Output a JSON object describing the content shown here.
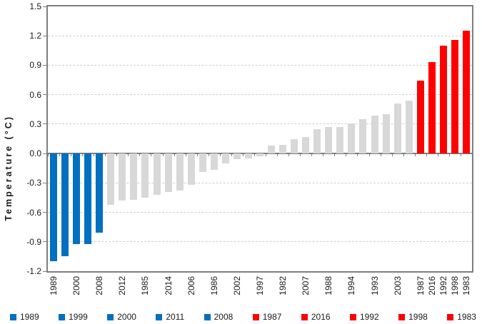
{
  "chart_data": {
    "type": "bar",
    "title": "",
    "xlabel": "",
    "ylabel": "Temperature (°C)",
    "ylim": [
      -1.2,
      1.5
    ],
    "grid": "horizontal-dashed",
    "legend_position": "bottom",
    "yticks": [
      {
        "value": 1.5,
        "label": "1.5"
      },
      {
        "value": 1.2,
        "label": "1.2"
      },
      {
        "value": 0.9,
        "label": "0.9"
      },
      {
        "value": 0.6,
        "label": "0.6"
      },
      {
        "value": 0.3,
        "label": "0.3"
      },
      {
        "value": 0.0,
        "label": "0.0"
      },
      {
        "value": -0.3,
        "label": "-0.3"
      },
      {
        "value": -0.6,
        "label": "-0.6"
      },
      {
        "value": -0.9,
        "label": "-0.9"
      },
      {
        "value": -1.2,
        "label": "-1.2"
      }
    ],
    "colors": {
      "blue": "#0070C0",
      "red": "#FF0000",
      "gray": "#D8D8D8"
    },
    "bars": [
      {
        "label": "1989",
        "value": -1.1,
        "group": "blue"
      },
      {
        "label": "",
        "value": -1.05,
        "group": "blue"
      },
      {
        "label": "2000",
        "value": -0.92,
        "group": "blue"
      },
      {
        "label": "",
        "value": -0.92,
        "group": "blue"
      },
      {
        "label": "2008",
        "value": -0.81,
        "group": "blue"
      },
      {
        "label": "",
        "value": -0.52,
        "group": "gray"
      },
      {
        "label": "2012",
        "value": -0.48,
        "group": "gray"
      },
      {
        "label": "",
        "value": -0.47,
        "group": "gray"
      },
      {
        "label": "1985",
        "value": -0.45,
        "group": "gray"
      },
      {
        "label": "",
        "value": -0.42,
        "group": "gray"
      },
      {
        "label": "2014",
        "value": -0.39,
        "group": "gray"
      },
      {
        "label": "",
        "value": -0.38,
        "group": "gray"
      },
      {
        "label": "2006",
        "value": -0.32,
        "group": "gray"
      },
      {
        "label": "",
        "value": -0.19,
        "group": "gray"
      },
      {
        "label": "1986",
        "value": -0.17,
        "group": "gray"
      },
      {
        "label": "",
        "value": -0.1,
        "group": "gray"
      },
      {
        "label": "2002",
        "value": -0.06,
        "group": "gray"
      },
      {
        "label": "",
        "value": -0.05,
        "group": "gray"
      },
      {
        "label": "1997",
        "value": -0.03,
        "group": "gray"
      },
      {
        "label": "",
        "value": 0.08,
        "group": "gray"
      },
      {
        "label": "1982",
        "value": 0.09,
        "group": "gray"
      },
      {
        "label": "",
        "value": 0.15,
        "group": "gray"
      },
      {
        "label": "2007",
        "value": 0.17,
        "group": "gray"
      },
      {
        "label": "",
        "value": 0.25,
        "group": "gray"
      },
      {
        "label": "1988",
        "value": 0.27,
        "group": "gray"
      },
      {
        "label": "",
        "value": 0.27,
        "group": "gray"
      },
      {
        "label": "1994",
        "value": 0.31,
        "group": "gray"
      },
      {
        "label": "",
        "value": 0.35,
        "group": "gray"
      },
      {
        "label": "1993",
        "value": 0.39,
        "group": "gray"
      },
      {
        "label": "",
        "value": 0.4,
        "group": "gray"
      },
      {
        "label": "2003",
        "value": 0.51,
        "group": "gray"
      },
      {
        "label": "",
        "value": 0.54,
        "group": "gray"
      },
      {
        "label": "1987",
        "value": 0.74,
        "group": "red"
      },
      {
        "label": "2016",
        "value": 0.93,
        "group": "red"
      },
      {
        "label": "1992",
        "value": 1.1,
        "group": "red"
      },
      {
        "label": "1998",
        "value": 1.16,
        "group": "red"
      },
      {
        "label": "1983",
        "value": 1.25,
        "group": "red"
      }
    ],
    "legend": [
      {
        "label": "1989",
        "group": "blue"
      },
      {
        "label": "1999",
        "group": "blue"
      },
      {
        "label": "2000",
        "group": "blue"
      },
      {
        "label": "2011",
        "group": "blue"
      },
      {
        "label": "2008",
        "group": "blue"
      },
      {
        "label": "1987",
        "group": "red"
      },
      {
        "label": "2016",
        "group": "red"
      },
      {
        "label": "1992",
        "group": "red"
      },
      {
        "label": "1998",
        "group": "red"
      },
      {
        "label": "1983",
        "group": "red"
      }
    ]
  }
}
